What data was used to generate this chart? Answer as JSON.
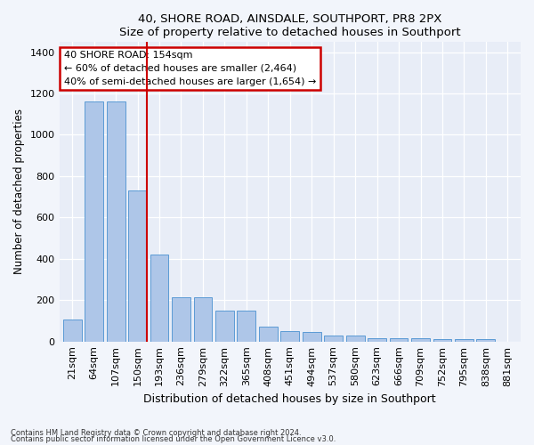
{
  "title": "40, SHORE ROAD, AINSDALE, SOUTHPORT, PR8 2PX",
  "subtitle": "Size of property relative to detached houses in Southport",
  "xlabel": "Distribution of detached houses by size in Southport",
  "ylabel": "Number of detached properties",
  "categories": [
    "21sqm",
    "64sqm",
    "107sqm",
    "150sqm",
    "193sqm",
    "236sqm",
    "279sqm",
    "322sqm",
    "365sqm",
    "408sqm",
    "451sqm",
    "494sqm",
    "537sqm",
    "580sqm",
    "623sqm",
    "666sqm",
    "709sqm",
    "752sqm",
    "795sqm",
    "838sqm",
    "881sqm"
  ],
  "values": [
    105,
    1160,
    1160,
    730,
    420,
    215,
    215,
    150,
    150,
    70,
    50,
    48,
    30,
    28,
    18,
    14,
    14,
    13,
    13,
    10,
    0
  ],
  "bar_color": "#aec6e8",
  "bar_edge_color": "#5b9bd5",
  "red_line_index": 3,
  "annotation_line1": "40 SHORE ROAD: 154sqm",
  "annotation_line2": "← 60% of detached houses are smaller (2,464)",
  "annotation_line3": "40% of semi-detached houses are larger (1,654) →",
  "annotation_box_color": "#ffffff",
  "annotation_box_edge_color": "#cc0000",
  "red_line_color": "#cc0000",
  "footer1": "Contains HM Land Registry data © Crown copyright and database right 2024.",
  "footer2": "Contains public sector information licensed under the Open Government Licence v3.0.",
  "ylim": [
    0,
    1450
  ],
  "yticks": [
    0,
    200,
    400,
    600,
    800,
    1000,
    1200,
    1400
  ],
  "background_color": "#f2f5fb",
  "plot_background": "#e8edf7"
}
